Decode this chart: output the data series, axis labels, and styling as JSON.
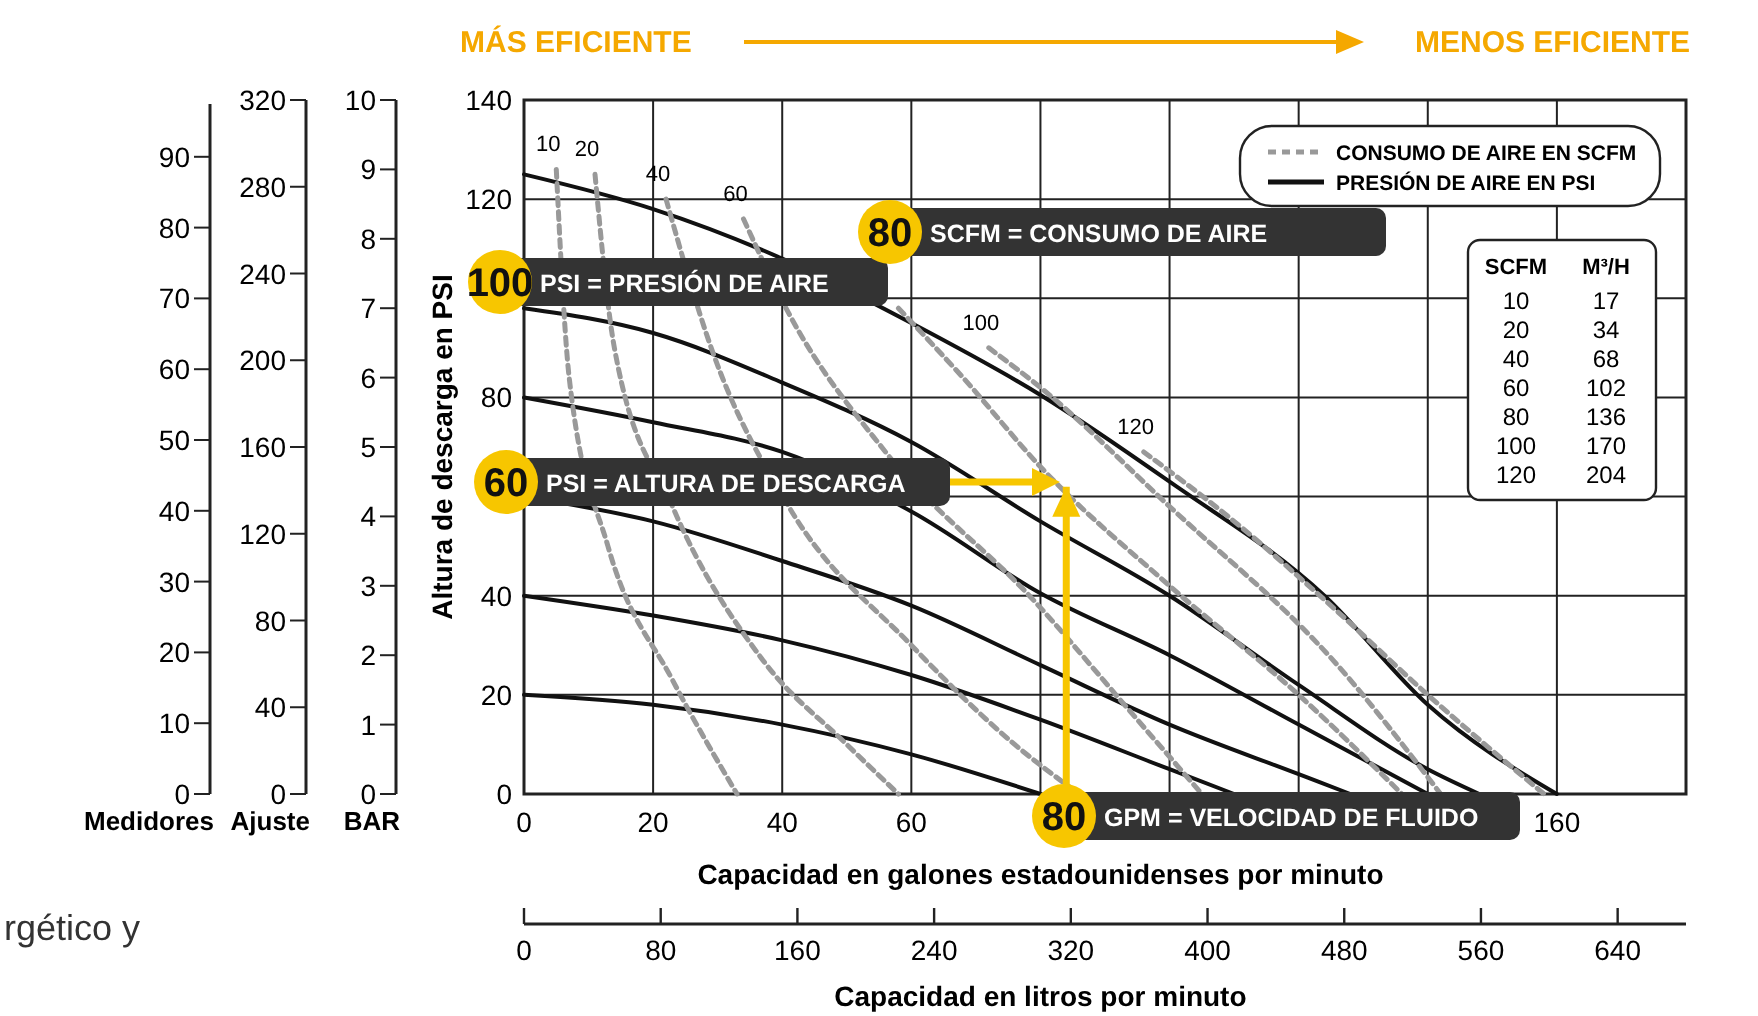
{
  "chart_data": {
    "type": "line",
    "xlabel": "Capacidad en galones estadounidenses por minuto",
    "ylabel": "Altura de descarga en PSI",
    "x2label": "Capacidad en litros por minuto",
    "y2label": "BAR",
    "y3label": "Ajuste",
    "xlim": [
      0,
      180
    ],
    "xticks": [
      0,
      20,
      40,
      60,
      {
        "value": 80,
        "label": null
      },
      {
        "value": 100,
        "label": null
      },
      {
        "value": 120,
        "label": null
      },
      {
        "value": 140,
        "label": null
      },
      160
    ],
    "ylim": [
      0,
      140
    ],
    "yticks": [
      0,
      20,
      40,
      {
        "value": 60,
        "label": null
      },
      80,
      {
        "value": 100,
        "label": null
      },
      120,
      140
    ],
    "x2lim": [
      0,
      680
    ],
    "x2ticks": [
      0,
      80,
      160,
      240,
      320,
      400,
      480,
      560,
      640
    ],
    "y2lim": [
      0,
      10
    ],
    "y2ticks": [
      0,
      1,
      2,
      3,
      4,
      5,
      6,
      7,
      8,
      9,
      10
    ],
    "y3lim": [
      0,
      320
    ],
    "y3ticks": [
      0,
      40,
      80,
      120,
      160,
      200,
      240,
      280,
      320
    ],
    "grid": true,
    "series": [
      {
        "color": "#111111",
        "line_style": "solid",
        "x": [
          0,
          20,
          40,
          60,
          80,
          100,
          124,
          140,
          160
        ],
        "values": [
          125,
          118,
          108,
          95,
          80.5,
          63,
          40,
          18,
          0
        ]
      },
      {
        "color": "#111111",
        "line_style": "solid",
        "x": [
          0,
          20,
          40,
          60,
          80,
          100,
          120,
          140,
          148
        ],
        "values": [
          98,
          93,
          83,
          71,
          55,
          40,
          22,
          5,
          0
        ]
      },
      {
        "color": "#111111",
        "line_style": "solid",
        "x": [
          0,
          20,
          40,
          60,
          80,
          100,
          120,
          140
        ],
        "values": [
          80,
          75,
          69,
          57,
          40.5,
          28,
          14,
          0
        ]
      },
      {
        "color": "#111111",
        "line_style": "solid",
        "x": [
          0,
          20,
          40,
          60,
          80,
          100,
          120,
          128
        ],
        "values": [
          60,
          55,
          47,
          38,
          26,
          14,
          4,
          0
        ]
      },
      {
        "color": "#111111",
        "line_style": "solid",
        "x": [
          0,
          20,
          40,
          60,
          80,
          100,
          110
        ],
        "values": [
          40,
          36,
          31,
          24,
          15,
          5,
          0
        ]
      },
      {
        "color": "#111111",
        "line_style": "solid",
        "x": [
          0,
          20,
          40,
          60,
          80
        ],
        "values": [
          20,
          18,
          14,
          8,
          0
        ]
      },
      {
        "name": "10",
        "color": "#999999",
        "line_style": "dashed",
        "x": [
          5,
          7,
          13,
          23,
          33
        ],
        "values": [
          126,
          84,
          50,
          23,
          0
        ]
      },
      {
        "name": "20",
        "color": "#999999",
        "line_style": "dashed",
        "x": [
          11,
          14,
          23,
          37,
          50,
          58
        ],
        "values": [
          125,
          90,
          58,
          27,
          10,
          0
        ]
      },
      {
        "name": "40",
        "color": "#999999",
        "line_style": "dashed",
        "x": [
          22,
          29,
          41,
          60,
          76,
          86
        ],
        "values": [
          120,
          90,
          58,
          30,
          10,
          0
        ]
      },
      {
        "name": "60",
        "color": "#999999",
        "line_style": "dashed",
        "x": [
          34,
          41,
          56,
          79,
          95,
          105
        ],
        "values": [
          116,
          97,
          69,
          39,
          15,
          0
        ]
      },
      {
        "color": "#999999",
        "line_style": "dashed",
        "x": [
          58,
          68,
          80,
          100,
          120,
          136
        ],
        "values": [
          98,
          84,
          66,
          42,
          20,
          0
        ]
      },
      {
        "name": "100",
        "color": "#999999",
        "line_style": "dashed",
        "x": [
          72,
          80,
          100,
          126,
          142
        ],
        "values": [
          90,
          82,
          58,
          26,
          0
        ]
      },
      {
        "name": "120",
        "color": "#999999",
        "line_style": "dashed",
        "x": [
          96,
          110,
          125,
          140,
          158
        ],
        "values": [
          69,
          55,
          38,
          20,
          0
        ]
      }
    ],
    "annotations": [
      "MÁS EFICIENTE",
      "MENOS EFICIENTE",
      "CONSUMO DE AIRE EN SCFM",
      "PRESIÓN DE AIRE EN PSI",
      "100 PSI = PRESIÓN DE AIRE",
      "80 SCFM = CONSUMO DE AIRE",
      "60 PSI = ALTURA DE DESCARGA",
      {
        "text": "80 GPM = VELOCIDAD DE FLUIDO",
        "x": 84,
        "y": 62
      },
      "SCFM",
      "M³/H",
      "10",
      "17",
      "20",
      "34",
      "40",
      "68",
      "60",
      "102",
      "80",
      "136",
      "100",
      "170",
      "120",
      "204",
      "rgético y",
      "Medidores",
      "0",
      "10",
      "20",
      "30",
      "40",
      "50",
      "60",
      "70",
      "80",
      "90"
    ]
  }
}
